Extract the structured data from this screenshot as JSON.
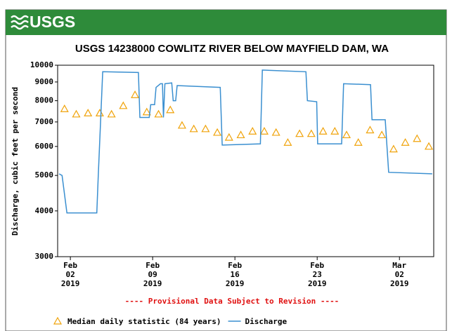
{
  "logo": "USGS",
  "chart_data": {
    "type": "line",
    "title": "USGS 14238000 COWLITZ RIVER BELOW MAYFIELD DAM, WA",
    "subtitle": "---- Provisional Data Subject to Revision ----",
    "y_label": "Discharge, cubic feet per second",
    "yscale": "log",
    "ylim": [
      3000,
      10000
    ],
    "yticks": [
      3000,
      4000,
      5000,
      6000,
      7000,
      8000,
      9000,
      10000
    ],
    "xlim": [
      "2019-01-31T22:00",
      "2019-03-04T22:00"
    ],
    "xticks": [
      {
        "value": "2019-02-02",
        "label": "Feb 02 2019"
      },
      {
        "value": "2019-02-09",
        "label": "Feb 09 2019"
      },
      {
        "value": "2019-02-16",
        "label": "Feb 16 2019"
      },
      {
        "value": "2019-02-23",
        "label": "Feb 23 2019"
      },
      {
        "value": "2019-03-02",
        "label": "Mar 02 2019"
      }
    ],
    "series": [
      {
        "name": "Median daily statistic (84 years)",
        "color": "#f0a30a",
        "marker": "triangle",
        "x": [
          "2019-02-01",
          "2019-02-02",
          "2019-02-03",
          "2019-02-04",
          "2019-02-05",
          "2019-02-06",
          "2019-02-07",
          "2019-02-08",
          "2019-02-09",
          "2019-02-10",
          "2019-02-11",
          "2019-02-12",
          "2019-02-13",
          "2019-02-14",
          "2019-02-15",
          "2019-02-16",
          "2019-02-17",
          "2019-02-18",
          "2019-02-19",
          "2019-02-20",
          "2019-02-21",
          "2019-02-22",
          "2019-02-23",
          "2019-02-24",
          "2019-02-25",
          "2019-02-26",
          "2019-02-27",
          "2019-02-28",
          "2019-03-01",
          "2019-03-02",
          "2019-03-03",
          "2019-03-04"
        ],
        "values": [
          7600,
          7350,
          7400,
          7400,
          7350,
          7750,
          8300,
          7450,
          7350,
          7550,
          6850,
          6700,
          6700,
          6550,
          6350,
          6450,
          6600,
          6600,
          6550,
          6150,
          6500,
          6500,
          6600,
          6600,
          6450,
          6150,
          6650,
          6450,
          5900,
          6150,
          6300,
          6000
        ]
      },
      {
        "name": "Discharge",
        "color": "#3a8fd0",
        "marker": "line",
        "x": [
          "2019-02-01T01:00",
          "2019-02-01T07:00",
          "2019-02-01T17:00",
          "2019-02-04T06:00",
          "2019-02-04T09:00",
          "2019-02-04T18:00",
          "2019-02-07T19:00",
          "2019-02-07T22:00",
          "2019-02-08T17:00",
          "2019-02-08T20:00",
          "2019-02-09T04:00",
          "2019-02-09T07:00",
          "2019-02-09T16:00",
          "2019-02-09T20:00",
          "2019-02-09T22:00",
          "2019-02-10T01:00",
          "2019-02-10T15:00",
          "2019-02-10T18:00",
          "2019-02-10T23:00",
          "2019-02-11T02:00",
          "2019-02-14T18:00",
          "2019-02-14T22:00",
          "2019-02-18T04:00",
          "2019-02-18T08:00",
          "2019-02-22T01:00",
          "2019-02-22T04:00",
          "2019-02-22T23:00",
          "2019-02-23T01:00",
          "2019-02-25T02:00",
          "2019-02-25T06:00",
          "2019-02-27T13:00",
          "2019-02-27T16:00",
          "2019-02-28T19:00",
          "2019-03-01T02:00",
          "2019-03-04T19:00"
        ],
        "values": [
          5050,
          5000,
          3950,
          3950,
          5000,
          9600,
          9550,
          7200,
          7200,
          7800,
          7800,
          8700,
          8900,
          8900,
          7200,
          8900,
          8950,
          8000,
          8000,
          8800,
          8700,
          6050,
          6100,
          9700,
          9600,
          8000,
          7950,
          6100,
          6100,
          8900,
          8850,
          7100,
          7100,
          5100,
          5050
        ]
      }
    ]
  }
}
